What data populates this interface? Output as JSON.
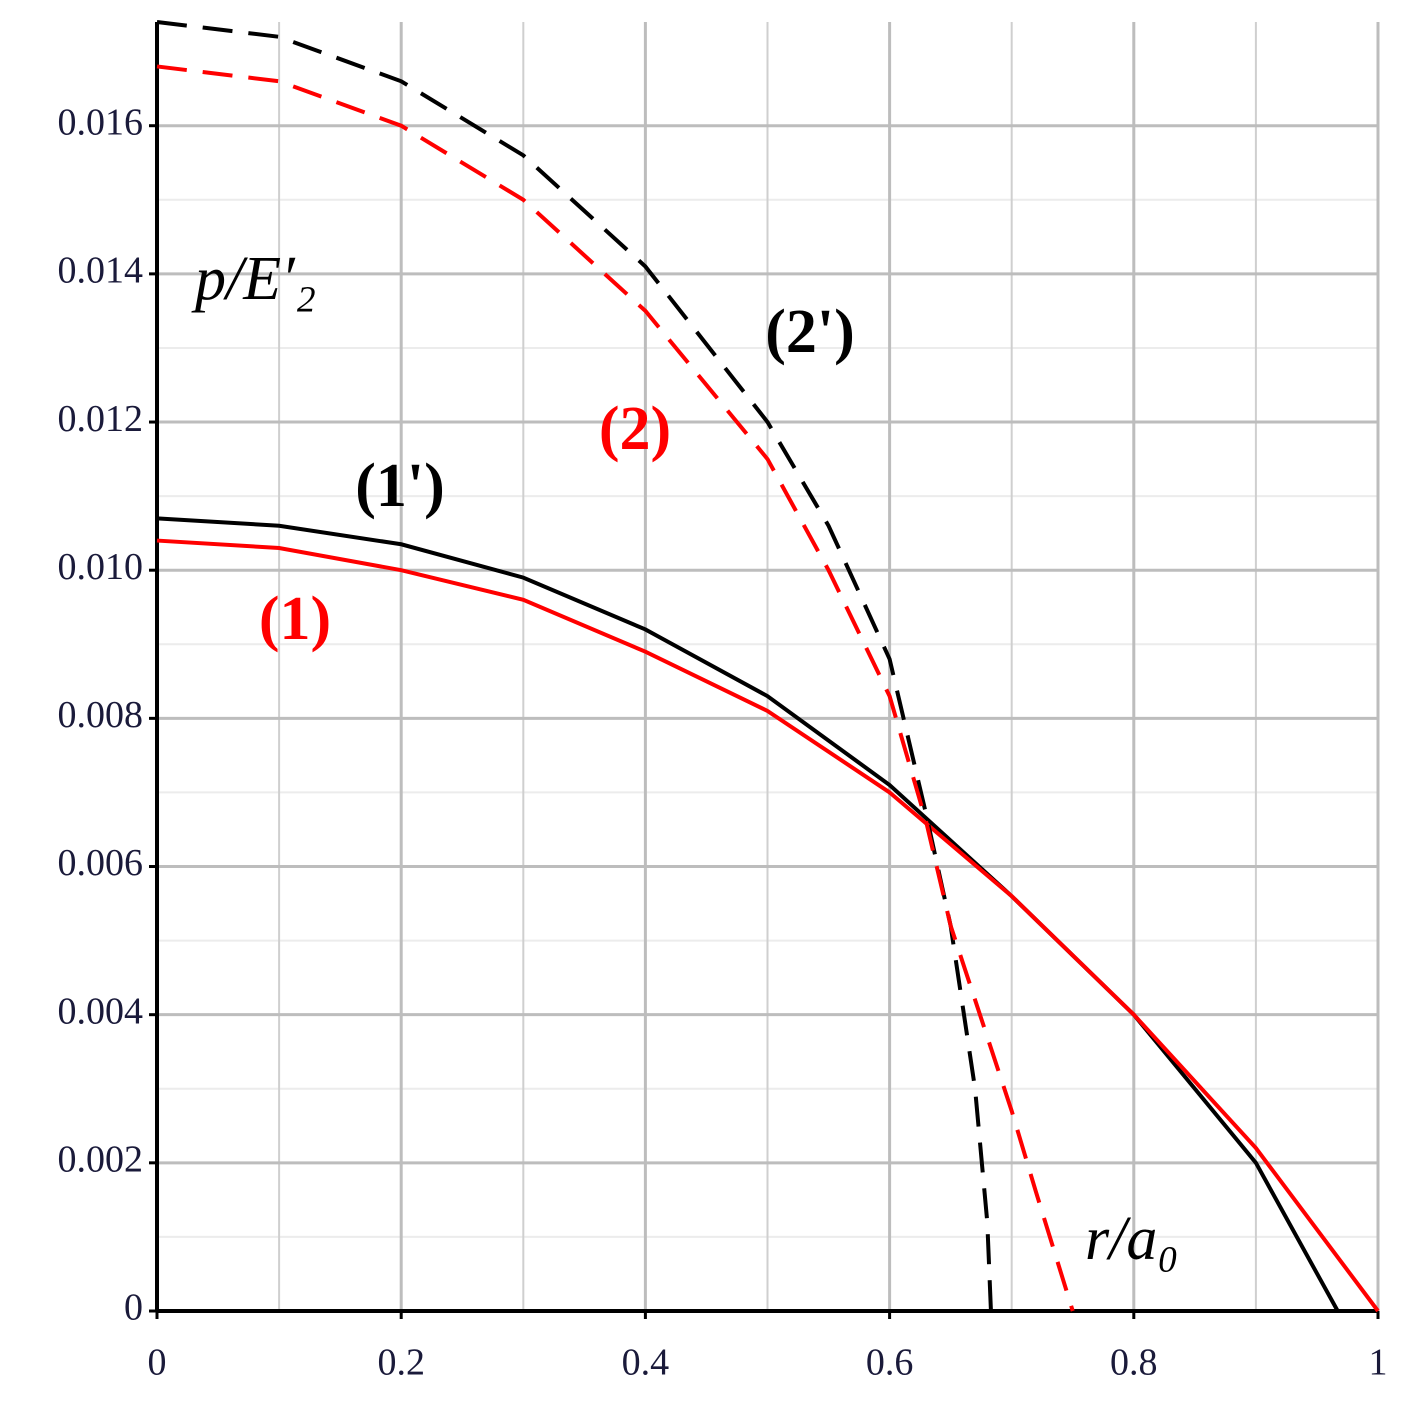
{
  "chart_data": {
    "type": "line",
    "y_label": "p/E′₂",
    "x_label": "r/a₀",
    "xlim": [
      0,
      1
    ],
    "ylim": [
      0,
      0.0174
    ],
    "xticks": [
      0,
      0.2,
      0.4,
      0.6,
      0.8,
      1
    ],
    "yticks": [
      0,
      0.002,
      0.004,
      0.006,
      0.008,
      {
        "value": 0.01,
        "label": "0.010"
      },
      0.012,
      0.014,
      0.016
    ],
    "grid": true,
    "series": [
      {
        "name": "(1')",
        "color": "#000000",
        "dashed": false,
        "x": [
          0,
          0.1,
          0.2,
          0.3,
          0.4,
          0.5,
          0.6,
          0.7,
          0.8,
          0.9,
          0.967
        ],
        "values": [
          0.0107,
          0.0106,
          0.01035,
          0.0099,
          0.0092,
          0.0083,
          0.0071,
          0.0056,
          0.004,
          0.002,
          0
        ]
      },
      {
        "name": "(1)",
        "color": "#ff0000",
        "dashed": false,
        "x": [
          0,
          0.1,
          0.2,
          0.3,
          0.4,
          0.5,
          0.6,
          0.7,
          0.8,
          0.9,
          1
        ],
        "values": [
          0.0104,
          0.0103,
          0.01,
          0.0096,
          0.0089,
          0.0081,
          0.007,
          0.0056,
          0.004,
          0.0022,
          0
        ]
      },
      {
        "name": "(2')",
        "color": "#000000",
        "dashed": true,
        "x": [
          0,
          0.1,
          0.2,
          0.3,
          0.4,
          0.5,
          0.55,
          0.6,
          0.63,
          0.65,
          0.67,
          0.68,
          0.683
        ],
        "values": [
          0.0174,
          0.0172,
          0.0166,
          0.0156,
          0.0141,
          0.012,
          0.0106,
          0.0088,
          0.0067,
          0.0052,
          0.003,
          0.0012,
          0
        ]
      },
      {
        "name": "(2)",
        "color": "#ff0000",
        "dashed": true,
        "x": [
          0,
          0.1,
          0.2,
          0.3,
          0.4,
          0.5,
          0.55,
          0.6,
          0.63,
          0.65,
          0.7,
          0.72,
          0.75
        ],
        "values": [
          0.0168,
          0.0166,
          0.016,
          0.015,
          0.0135,
          0.0115,
          0.01,
          0.0083,
          0.0066,
          0.0052,
          0.0027,
          0.0016,
          0
        ]
      }
    ]
  }
}
